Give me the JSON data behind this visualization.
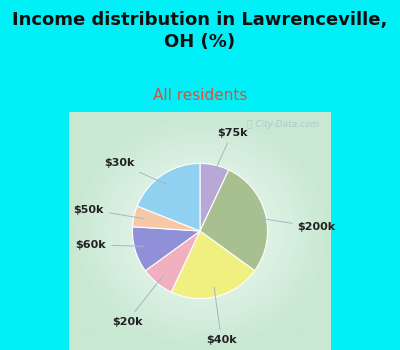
{
  "title": "Income distribution in Lawrenceville,\nOH (%)",
  "subtitle": "All residents",
  "watermark": "ⓘ City-Data.com",
  "labels": [
    "$75k",
    "$200k",
    "$40k",
    "$20k",
    "$60k",
    "$50k",
    "$30k"
  ],
  "sizes": [
    7,
    28,
    22,
    8,
    11,
    5,
    19
  ],
  "colors": [
    "#b8a8d8",
    "#a8c090",
    "#f0f080",
    "#f0b0c0",
    "#9090d8",
    "#f5c8a8",
    "#90d0f0"
  ],
  "startangle": 90,
  "bg_color_top": "#00f0f8",
  "bg_color_chart_outer": "#c8e8d0",
  "bg_color_chart_inner": "#f0f8f0",
  "title_fontsize": 13,
  "subtitle_fontsize": 11,
  "subtitle_color": "#cc5544",
  "label_fontsize": 8,
  "label_color": "#222222",
  "watermark_color": "#b0c8d0",
  "line_color": "#a0b8c8"
}
